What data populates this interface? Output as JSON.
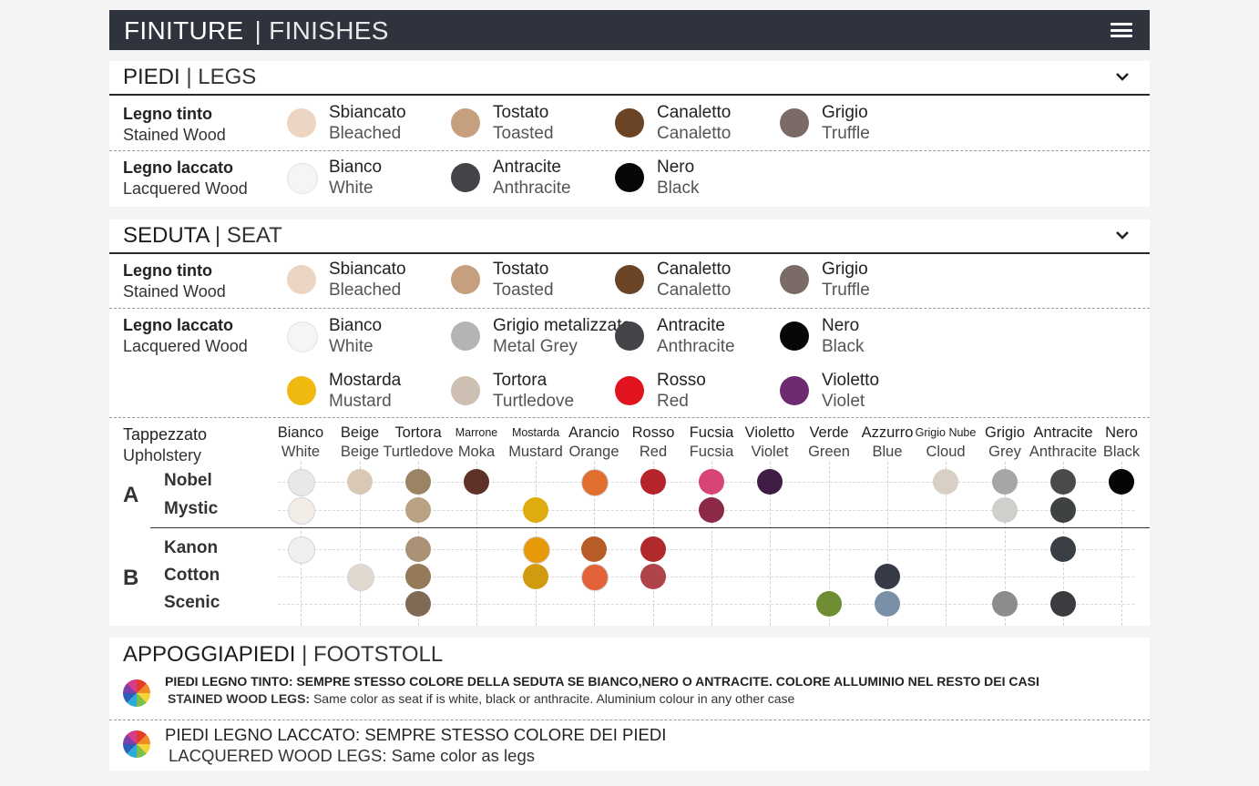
{
  "header": {
    "title_main": "FINITURE",
    "title_sep": "| FINISHES"
  },
  "legs": {
    "title_it": "PIEDI",
    "title_en": "| LEGS",
    "rows": [
      {
        "label_it": "Legno tinto",
        "label_en": "Stained Wood",
        "options": [
          {
            "it": "Sbiancato",
            "en": "Bleached",
            "color": "#ecd5c2"
          },
          {
            "it": "Tostato",
            "en": "Toasted",
            "color": "#c6a07e"
          },
          {
            "it": "Canaletto",
            "en": "Canaletto",
            "color": "#6b4426"
          },
          {
            "it": "Grigio",
            "en": "Truffle",
            "color": "#7a6b67"
          }
        ]
      },
      {
        "label_it": "Legno laccato",
        "label_en": "Lacquered Wood",
        "options": [
          {
            "it": "Bianco",
            "en": "White",
            "color": "#f5f5f5"
          },
          {
            "it": "Antracite",
            "en": "Anthracite",
            "color": "#434447"
          },
          {
            "it": "Nero",
            "en": "Black",
            "color": "#070707"
          }
        ]
      }
    ]
  },
  "seat": {
    "title_it": "SEDUTA",
    "title_en": "| SEAT",
    "rows": [
      {
        "label_it": "Legno tinto",
        "label_en": "Stained Wood",
        "options": [
          {
            "it": "Sbiancato",
            "en": "Bleached",
            "color": "#ecd5c2"
          },
          {
            "it": "Tostato",
            "en": "Toasted",
            "color": "#c6a07e"
          },
          {
            "it": "Canaletto",
            "en": "Canaletto",
            "color": "#6b4426"
          },
          {
            "it": "Grigio",
            "en": "Truffle",
            "color": "#7a6b67"
          }
        ]
      },
      {
        "label_it": "Legno laccato",
        "label_en": "Lacquered Wood",
        "options": [
          {
            "it": "Bianco",
            "en": "White",
            "color": "#f5f5f5"
          },
          {
            "it": "Grigio metalizzato",
            "en": "Metal Grey",
            "color": "#b4b4b4"
          },
          {
            "it": "Antracite",
            "en": "Anthracite",
            "color": "#434447"
          },
          {
            "it": "Nero",
            "en": "Black",
            "color": "#070707"
          },
          {
            "it": "Mostarda",
            "en": "Mustard",
            "color": "#f0b90f"
          },
          {
            "it": "Tortora",
            "en": "Turtledove",
            "color": "#cdbfb2"
          },
          {
            "it": "Rosso",
            "en": "Red",
            "color": "#e0131f"
          },
          {
            "it": "Violetto",
            "en": "Violet",
            "color": "#6e2b72"
          }
        ]
      }
    ]
  },
  "upholstery": {
    "label_it": "Tappezzato",
    "label_en": "Upholstery",
    "columns": [
      {
        "it": "Bianco",
        "en": "White"
      },
      {
        "it": "Beige",
        "en": "Beige"
      },
      {
        "it": "Tortora",
        "en": "Turtledove"
      },
      {
        "it": "Marrone",
        "en": "Moka"
      },
      {
        "it": "Mostarda",
        "en": "Mustard"
      },
      {
        "it": "Arancio",
        "en": "Orange"
      },
      {
        "it": "Rosso",
        "en": "Red"
      },
      {
        "it": "Fucsia",
        "en": "Fucsia"
      },
      {
        "it": "Violetto",
        "en": "Violet"
      },
      {
        "it": "Verde",
        "en": "Green"
      },
      {
        "it": "Azzurro",
        "en": "Blue"
      },
      {
        "it": "Grigio Nube",
        "en": "Cloud"
      },
      {
        "it": "Grigio",
        "en": "Grey"
      },
      {
        "it": "Antracite",
        "en": "Anthracite"
      },
      {
        "it": "Nero",
        "en": "Black"
      }
    ],
    "groups": [
      {
        "name": "A",
        "materials": [
          {
            "name": "Nobel",
            "swatches": [
              "#e8e8e8",
              "#d9c8b6",
              "#9a8464",
              "#5e3229",
              null,
              "#e06f2d",
              "#b5232b",
              "#d84477",
              "#3f1d44",
              null,
              null,
              "#d8cfc7",
              "#a6a6a6",
              "#4a4a4c",
              "#050505"
            ]
          },
          {
            "name": "Mystic",
            "swatches": [
              "#f2ede6",
              null,
              "#b9a284",
              null,
              "#deac0e",
              null,
              null,
              "#8c2a47",
              null,
              null,
              null,
              null,
              "#cfcfcb",
              "#3f4242",
              null
            ]
          }
        ]
      },
      {
        "name": "B",
        "materials": [
          {
            "name": "Kanon",
            "swatches": [
              "#f0f0f0",
              null,
              "#ab9175",
              null,
              "#e69a0a",
              "#b85c28",
              "#b1292b",
              null,
              null,
              null,
              null,
              null,
              null,
              "#3a3e45",
              null
            ]
          },
          {
            "name": "Cotton",
            "swatches": [
              null,
              "#e1d8d0",
              "#957a57",
              null,
              "#d19b0f",
              "#e2623a",
              "#b0444b",
              null,
              null,
              null,
              "#353a45",
              null,
              null,
              null,
              null
            ]
          },
          {
            "name": "Scenic",
            "swatches": [
              null,
              null,
              "#7e6a55",
              null,
              null,
              null,
              null,
              null,
              null,
              "#6f8e34",
              "#7990a6",
              null,
              "#8c8c8c",
              "#3b3c3f",
              null
            ]
          }
        ]
      }
    ]
  },
  "footrest": {
    "title_it": "APPOGGIAPIEDI",
    "title_en": "| FOOTSTOLL",
    "notes": [
      {
        "it": "PIEDI LEGNO TINTO: SEMPRE STESSO COLORE DELLA SEDUTA SE BIANCO,NERO O ANTRACITE. COLORE ALLUMINIO NEL RESTO DEI CASI",
        "en_bold": "STAINED WOOD LEGS:",
        "en": " Same color as seat if is white, black or anthracite. Aluminium colour in any other case"
      },
      {
        "it": "PIEDI LEGNO LACCATO: SEMPRE STESSO COLORE DEI PIEDI",
        "en_bold": "",
        "en": "LACQUERED WOOD LEGS: Same color as legs"
      }
    ]
  }
}
